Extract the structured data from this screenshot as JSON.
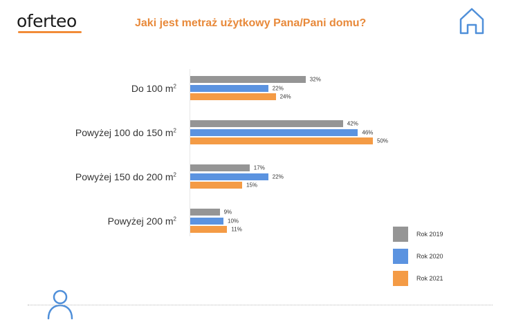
{
  "brand": {
    "name": "oferteo"
  },
  "chart_data": {
    "type": "bar",
    "orientation": "horizontal",
    "title": "Jaki jest metraż użytkowy Pana/Pani domu?",
    "categories": [
      "Do 100 m²",
      "Powyżej 100 do 150 m²",
      "Powyżej 150 do 200 m²",
      "Powyżej 200 m²"
    ],
    "category_labels": [
      {
        "text": "Do 100 m",
        "sup": "2"
      },
      {
        "text": "Powyżej 100 do 150 m",
        "sup": "2"
      },
      {
        "text": "Powyżej 150 do 200 m",
        "sup": "2"
      },
      {
        "text": "Powyżej 200 m",
        "sup": "2"
      }
    ],
    "series": [
      {
        "name": "Rok 2019",
        "color": "#959595",
        "values": [
          32,
          42,
          17,
          9
        ]
      },
      {
        "name": "Rok 2020",
        "color": "#5b93e0",
        "values": [
          22,
          46,
          22,
          10
        ]
      },
      {
        "name": "Rok 2021",
        "color": "#f49b45",
        "values": [
          24,
          50,
          15,
          11
        ]
      }
    ],
    "value_suffix": "%",
    "legend_position": "bottom-right",
    "grid": false
  },
  "icons": {
    "house": "house-icon",
    "person": "person-icon"
  }
}
